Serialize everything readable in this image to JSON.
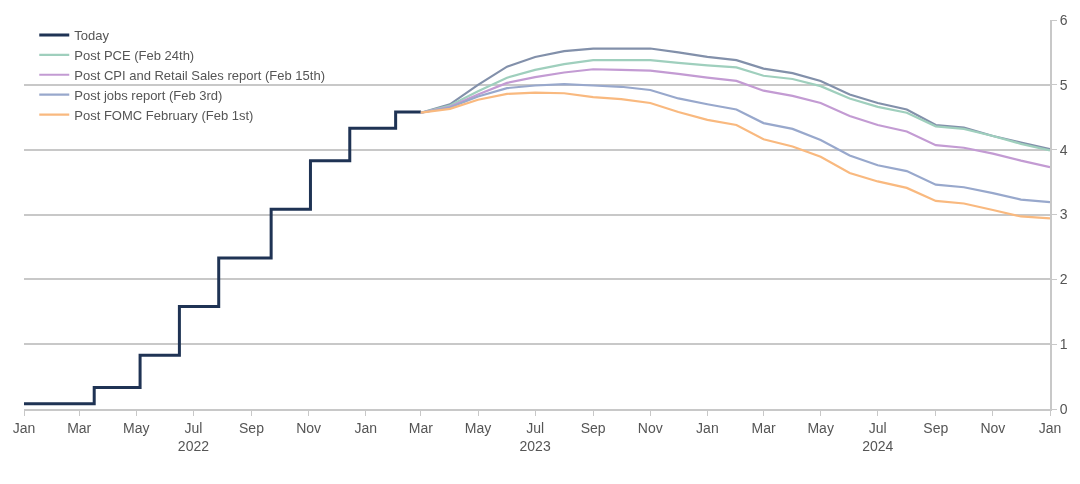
{
  "chart_data": {
    "type": "line",
    "xlim": [
      "2022-01-01",
      "2025-01-01"
    ],
    "xticks": [
      {
        "value": "2022-01-01",
        "label": "Jan"
      },
      {
        "value": "2022-03-01",
        "label": "Mar"
      },
      {
        "value": "2022-05-01",
        "label": "May"
      },
      {
        "value": "2022-07-01",
        "label": "Jul\n2022"
      },
      {
        "value": "2022-09-01",
        "label": "Sep"
      },
      {
        "value": "2022-11-01",
        "label": "Nov"
      },
      {
        "value": "2023-01-01",
        "label": "Jan"
      },
      {
        "value": "2023-03-01",
        "label": "Mar"
      },
      {
        "value": "2023-05-01",
        "label": "May"
      },
      {
        "value": "2023-07-01",
        "label": "Jul\n2023"
      },
      {
        "value": "2023-09-01",
        "label": "Sep"
      },
      {
        "value": "2023-11-01",
        "label": "Nov"
      },
      {
        "value": "2024-01-01",
        "label": "Jan"
      },
      {
        "value": "2024-03-01",
        "label": "Mar"
      },
      {
        "value": "2024-05-01",
        "label": "May"
      },
      {
        "value": "2024-07-01",
        "label": "Jul\n2024"
      },
      {
        "value": "2024-09-01",
        "label": "Sep"
      },
      {
        "value": "2024-11-01",
        "label": "Nov"
      },
      {
        "value": "2025-01-01",
        "label": "Jan"
      }
    ],
    "ylim": [
      0,
      6
    ],
    "yticks": [
      0,
      1,
      2,
      3,
      4,
      5,
      6
    ],
    "grid": "y",
    "legend": "top left",
    "marker": "none",
    "line_style": "solid",
    "x": [
      "2023-03-01",
      "2023-04-01",
      "2023-05-01",
      "2023-06-01",
      "2023-07-01",
      "2023-08-01",
      "2023-09-01",
      "2023-10-01",
      "2023-11-01",
      "2023-12-01",
      "2024-01-01",
      "2024-02-01",
      "2024-03-01",
      "2024-04-01",
      "2024-05-01",
      "2024-06-01",
      "2024-07-01",
      "2024-08-01",
      "2024-09-01",
      "2024-10-01",
      "2024-11-01",
      "2024-12-01",
      "2025-01-01"
    ],
    "series": [
      {
        "name": "Today",
        "type": "step",
        "color": "#1f3354",
        "x": [
          "2022-01-01",
          "2022-03-17",
          "2022-05-05",
          "2022-06-16",
          "2022-07-28",
          "2022-09-22",
          "2022-11-03",
          "2022-12-15",
          "2023-02-02",
          "2023-03-01"
        ],
        "values": [
          0.08,
          0.33,
          0.83,
          1.58,
          2.33,
          3.08,
          3.83,
          4.33,
          4.58,
          4.58
        ]
      },
      {
        "color": "#8290aa",
        "values": [
          4.57,
          4.7,
          5.0,
          5.28,
          5.43,
          5.52,
          5.56,
          5.56,
          5.56,
          5.5,
          5.43,
          5.38,
          5.25,
          5.18,
          5.06,
          4.85,
          4.72,
          4.62,
          4.38,
          4.34,
          4.21,
          4.11,
          4.01
        ]
      },
      {
        "name": "Post PCE (Feb 24th)",
        "color": "#9fcfbd",
        "values": [
          4.57,
          4.68,
          4.9,
          5.11,
          5.23,
          5.32,
          5.38,
          5.38,
          5.38,
          5.34,
          5.3,
          5.27,
          5.14,
          5.09,
          4.98,
          4.79,
          4.66,
          4.57,
          4.36,
          4.32,
          4.21,
          4.09,
          3.99
        ]
      },
      {
        "name": "Post CPI and Retail Sales report (Feb 15th)",
        "color": "#c39bd3",
        "values": [
          4.57,
          4.66,
          4.85,
          5.03,
          5.12,
          5.19,
          5.24,
          5.23,
          5.22,
          5.17,
          5.11,
          5.06,
          4.91,
          4.83,
          4.72,
          4.52,
          4.38,
          4.28,
          4.07,
          4.03,
          3.94,
          3.83,
          3.73
        ]
      },
      {
        "name": "Post jobs report (Feb 3rd)",
        "color": "#98a8cc",
        "values": [
          4.57,
          4.65,
          4.82,
          4.95,
          4.99,
          5.01,
          4.99,
          4.97,
          4.92,
          4.79,
          4.7,
          4.62,
          4.41,
          4.32,
          4.15,
          3.91,
          3.76,
          3.67,
          3.46,
          3.42,
          3.33,
          3.23,
          3.19
        ]
      },
      {
        "name": "Post FOMC February (Feb 1st)",
        "color": "#f9b97f",
        "values": [
          4.57,
          4.63,
          4.77,
          4.86,
          4.88,
          4.87,
          4.81,
          4.78,
          4.72,
          4.58,
          4.46,
          4.38,
          4.16,
          4.05,
          3.89,
          3.64,
          3.51,
          3.41,
          3.21,
          3.17,
          3.07,
          2.97,
          2.94
        ]
      }
    ]
  }
}
